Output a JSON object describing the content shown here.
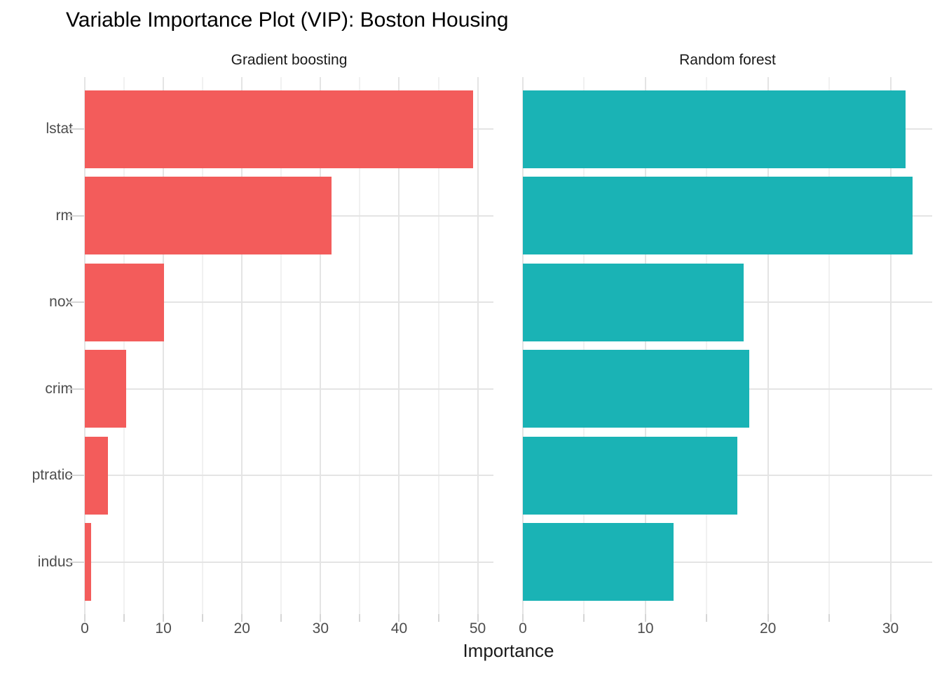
{
  "title": "Variable Importance Plot (VIP): Boston Housing",
  "x_axis_title": "Importance",
  "colors": {
    "gradient_boosting_bar": "#f35c5b",
    "random_forest_bar": "#1ab3b5",
    "grid_major": "#e4e4e4",
    "grid_minor": "#f1f1f1",
    "tick_mark": "#d6d6d6",
    "axis_text": "#4d4d4d",
    "strip_text": "#1a1a1a",
    "title_text": "#000000",
    "background": "#ffffff"
  },
  "chart_data": {
    "type": "bar",
    "orientation": "horizontal",
    "title": "Variable Importance Plot (VIP): Boston Housing",
    "xlabel": "Importance",
    "ylabel": "",
    "grid": true,
    "legend": "none",
    "categories": [
      "lstat",
      "rm",
      "nox",
      "crim",
      "ptratio",
      "indus"
    ],
    "facets": [
      {
        "name": "Gradient boosting",
        "color": "#f35c5b",
        "values": [
          49.4,
          31.4,
          10.1,
          5.3,
          2.9,
          0.8
        ],
        "xlim": [
          0,
          52
        ],
        "x_ticks_major": [
          0,
          10,
          20,
          30,
          40,
          50
        ],
        "x_ticks_minor": [
          5,
          15,
          25,
          35,
          45
        ]
      },
      {
        "name": "Random forest",
        "color": "#1ab3b5",
        "values": [
          31.2,
          31.8,
          18.0,
          18.5,
          17.5,
          12.3
        ],
        "xlim": [
          0,
          33.4
        ],
        "x_ticks_major": [
          0,
          10,
          20,
          30
        ],
        "x_ticks_minor": [
          5,
          15,
          25
        ]
      }
    ]
  }
}
